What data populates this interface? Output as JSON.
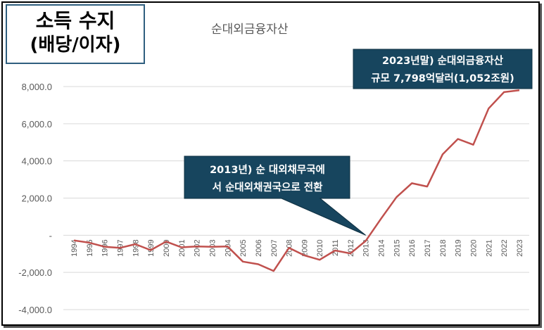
{
  "header": {
    "line1": "소득 수지",
    "line2": "(배당/이자)"
  },
  "chart_data": {
    "type": "line",
    "title": "순대외금융자산",
    "xlabel": "",
    "ylabel": "",
    "ylim": [
      -4000,
      8000
    ],
    "yticks": [
      "8,000.0",
      "6,000.0",
      "4,000.0",
      "2,000.0",
      "-",
      "-2,000.0",
      "-4,000.0"
    ],
    "ytick_values": [
      8000,
      6000,
      4000,
      2000,
      0,
      -2000,
      -4000
    ],
    "categories": [
      "1994",
      "1995",
      "1996",
      "1997",
      "1998",
      "1999",
      "2000",
      "2001",
      "2002",
      "2003",
      "2004",
      "2005",
      "2006",
      "2007",
      "2008",
      "2009",
      "2010",
      "2011",
      "2012",
      "2013",
      "2014",
      "2015",
      "2016",
      "2017",
      "2018",
      "2019",
      "2020",
      "2021",
      "2022",
      "2023"
    ],
    "series": [
      {
        "values": [
          -280,
          -400,
          -620,
          -680,
          -480,
          -800,
          -340,
          -650,
          -600,
          -620,
          -600,
          -1420,
          -1560,
          -1920,
          -680,
          -1080,
          -1320,
          -820,
          -980,
          -300,
          900,
          2050,
          2800,
          2620,
          4350,
          5180,
          4870,
          6820,
          7700,
          7798
        ],
        "color": "#c0504d"
      }
    ],
    "grid": true,
    "annotations": [
      {
        "line1": "2013년) 순 대외채무국에",
        "line2": "서 순대외채권국으로 전환",
        "x": "2013",
        "y": 0
      },
      {
        "line1": "2023년말) 순대외금융자산",
        "line2": "규모 7,798억달러(1,052조원)",
        "x": "2023",
        "y": 7798
      }
    ],
    "callout_color": "#17455e",
    "grid_color": "#d9d9d9"
  }
}
